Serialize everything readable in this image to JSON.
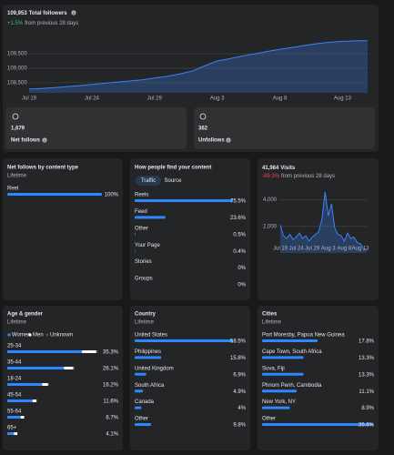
{
  "followers": {
    "total": "109,953",
    "title": "Total followers",
    "change": "+1.5%",
    "change_text": "from previous 28 days",
    "chart": {
      "type": "area",
      "categories": [
        "Jul 19",
        null,
        null,
        null,
        null,
        "Jul 24",
        null,
        null,
        null,
        null,
        "Jul 29",
        null,
        null,
        null,
        null,
        "Aug 3",
        null,
        null,
        null,
        null,
        "Aug 8",
        null,
        null,
        null,
        null,
        "Aug 13",
        null,
        null
      ],
      "values": [
        108280,
        108300,
        108330,
        108360,
        108400,
        108440,
        108480,
        108520,
        108560,
        108600,
        108660,
        108720,
        108800,
        108900,
        109080,
        109250,
        109330,
        109420,
        109500,
        109580,
        109650,
        109720,
        109790,
        109850,
        109900,
        109930,
        109945,
        109953
      ],
      "color": "#3b82f6",
      "ylim": [
        108150,
        110100
      ],
      "yticks": [
        {
          "value": 108500,
          "label": "108,500"
        },
        {
          "value": 109000,
          "label": "109,000"
        },
        {
          "value": 109500,
          "label": "109,500"
        }
      ],
      "grid": true
    }
  },
  "net_follows": {
    "value": "1,679",
    "label": "Net follows"
  },
  "unfollows": {
    "value": "362",
    "label": "Unfollows"
  },
  "content_type": {
    "title": "Net follows by content type",
    "subtitle": "Lifetime",
    "categories": [
      "Reel"
    ],
    "values": [
      100
    ],
    "value_labels": [
      "100%"
    ],
    "color": "#2d88ff"
  },
  "discovery": {
    "title": "How people find your content",
    "tabs": [
      "Traffic",
      "Source"
    ],
    "categories": [
      "Reels",
      "Feed",
      "Other",
      "Your Page",
      "Stories",
      "Groups"
    ],
    "values": [
      75.5,
      23.6,
      0.5,
      0.4,
      0,
      0
    ],
    "value_labels": [
      "75.5%",
      "23.6%",
      "0.5%",
      "0.4%",
      "0%",
      "0%"
    ],
    "color": "#2d88ff"
  },
  "visits": {
    "total": "41,984",
    "title": "Visits",
    "change": "-89.3%",
    "change_text": "from previous 28 days",
    "chart": {
      "type": "area",
      "categories": [
        "Jul 19",
        null,
        null,
        null,
        null,
        "Jul 24",
        null,
        null,
        null,
        null,
        "Jul 29",
        null,
        null,
        null,
        null,
        "Aug 3",
        null,
        null,
        null,
        null,
        "Aug 8",
        null,
        null,
        null,
        null,
        "Aug 13",
        null,
        null
      ],
      "values": [
        2100,
        1300,
        1100,
        1400,
        1000,
        1200,
        1500,
        1100,
        1300,
        900,
        1200,
        1400,
        1600,
        2500,
        4600,
        2800,
        3700,
        1900,
        1400,
        1300,
        900,
        1500,
        1100,
        1200,
        800,
        700,
        300,
        250
      ],
      "color": "#3b82f6",
      "ylim": [
        0,
        4800
      ],
      "yticks": [
        {
          "value": 2000,
          "label": "2,000"
        },
        {
          "value": 4000,
          "label": "4,000"
        }
      ],
      "grid": true
    }
  },
  "age_gender": {
    "title": "Age & gender",
    "subtitle": "Lifetime",
    "legend": [
      {
        "name": "Women",
        "color": "#2d88ff"
      },
      {
        "name": "Men",
        "color": "#ffffff"
      },
      {
        "name": "Unknown",
        "color": "#4a4b4d"
      }
    ],
    "categories": [
      "25-34",
      "35-44",
      "18-24",
      "45-54",
      "55-64",
      "65+"
    ],
    "women": [
      29.0,
      22.0,
      13.5,
      9.8,
      5.2,
      2.6
    ],
    "men": [
      5.5,
      3.6,
      2.3,
      1.5,
      1.3,
      1.3
    ],
    "values": [
      35.3,
      26.1,
      16.2,
      11.6,
      6.7,
      4.1
    ],
    "value_labels": [
      "35.3%",
      "26.1%",
      "16.2%",
      "11.6%",
      "6.7%",
      "4.1%"
    ]
  },
  "country": {
    "title": "Country",
    "subtitle": "Lifetime",
    "categories": [
      "United States",
      "Philippines",
      "United Kingdom",
      "South Africa",
      "Canada",
      "Other"
    ],
    "values": [
      58.5,
      15.8,
      6.9,
      4.9,
      4,
      9.8
    ],
    "value_labels": [
      "58.5%",
      "15.8%",
      "6.9%",
      "4.9%",
      "4%",
      "9.8%"
    ],
    "color": "#2d88ff"
  },
  "cities": {
    "title": "Cities",
    "subtitle": "Lifetime",
    "categories": [
      "Port Moresby, Papua New Guinea",
      "Cape Town, South Africa",
      "Suva, Fiji",
      "Phnom Penh, Cambodia",
      "New York, NY",
      "Other"
    ],
    "values": [
      17.8,
      13.3,
      13.3,
      11.1,
      8.9,
      35.6
    ],
    "value_labels": [
      "17.8%",
      "13.3%",
      "13.3%",
      "11.1%",
      "8.9%",
      "35.6%"
    ],
    "color": "#2d88ff"
  }
}
